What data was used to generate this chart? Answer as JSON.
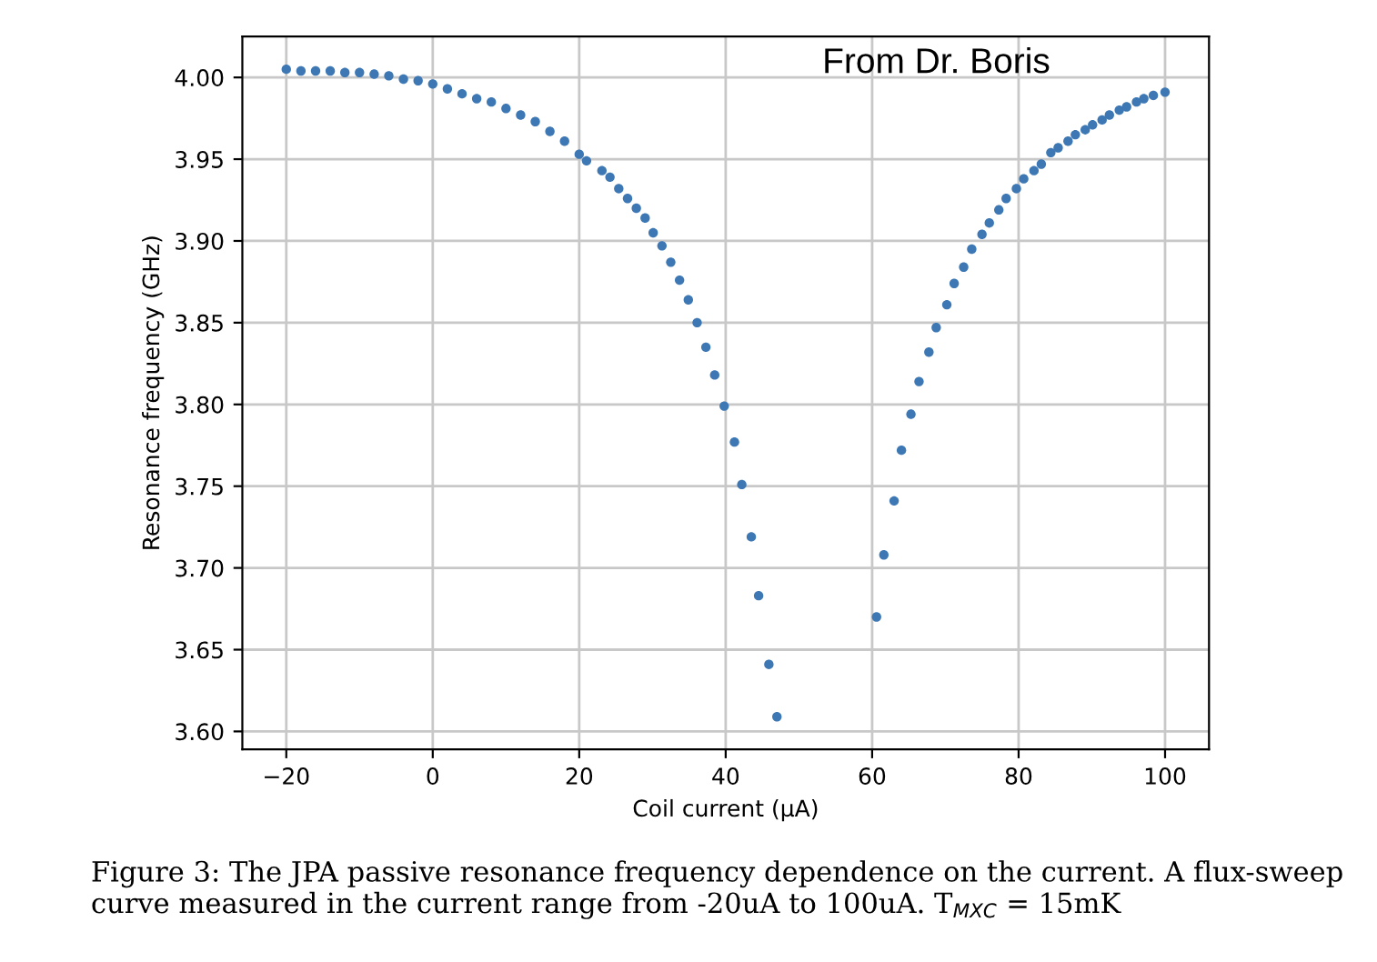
{
  "chart_data": {
    "type": "scatter",
    "xlabel": "Coil current (μA)",
    "ylabel": "Resonance frequency (GHz)",
    "annotations": [
      "From Dr. Boris",
      "Figure 3: The JPA passive resonance frequency dependence on the current. A flux-sweep curve measured in the current range from -20uA to 100uA. T$_{MXC}$ = 15mK"
    ],
    "series": [
      {
        "color": "#3d78b4",
        "x": [
          -20,
          -18,
          -16,
          -14,
          -12,
          -10,
          -8,
          -6,
          -4,
          -2,
          0,
          2,
          4,
          6,
          8,
          10,
          12,
          14,
          16,
          18,
          20,
          21,
          23.1,
          24.2,
          25.4,
          26.6,
          27.8,
          29,
          30.1,
          31.3,
          32.5,
          33.7,
          34.9,
          36.1,
          37.3,
          38.5,
          39.8,
          41.2,
          42.2,
          43.5,
          44.5,
          45.9,
          47,
          60.6,
          61.6,
          63,
          64,
          65.3,
          66.4,
          67.75,
          68.75,
          70.2,
          71.2,
          72.5,
          73.6,
          75,
          76,
          77.3,
          78.3,
          79.7,
          80.7,
          82.1,
          83.1,
          84.4,
          85.4,
          86.75,
          87.75,
          89.1,
          90.1,
          91.4,
          92.4,
          93.75,
          94.75,
          96.1,
          97.1,
          98.4,
          100
        ],
        "values": [
          4.005,
          4.004,
          4.004,
          4.004,
          4.003,
          4.003,
          4.002,
          4.001,
          3.999,
          3.998,
          3.996,
          3.993,
          3.99,
          3.987,
          3.985,
          3.981,
          3.977,
          3.973,
          3.967,
          3.961,
          3.953,
          3.949,
          3.943,
          3.939,
          3.932,
          3.926,
          3.92,
          3.914,
          3.905,
          3.897,
          3.887,
          3.876,
          3.864,
          3.85,
          3.835,
          3.818,
          3.799,
          3.777,
          3.751,
          3.719,
          3.683,
          3.641,
          3.609,
          3.67,
          3.708,
          3.741,
          3.772,
          3.794,
          3.814,
          3.832,
          3.847,
          3.861,
          3.874,
          3.884,
          3.895,
          3.904,
          3.911,
          3.919,
          3.926,
          3.932,
          3.938,
          3.943,
          3.947,
          3.954,
          3.957,
          3.961,
          3.965,
          3.968,
          3.971,
          3.974,
          3.977,
          3.98,
          3.982,
          3.985,
          3.987,
          3.989,
          3.991
        ]
      }
    ],
    "xlim": [
      -26,
      106
    ],
    "ylim": [
      3.589,
      4.025
    ],
    "xticks": [
      {
        "value": -20,
        "label": "−20"
      },
      0,
      20,
      40,
      60,
      80,
      100
    ],
    "yticks": [
      {
        "value": 3.6,
        "label": "3.60"
      },
      {
        "value": 3.65,
        "label": "3.65"
      },
      {
        "value": 3.7,
        "label": "3.70"
      },
      {
        "value": 3.75,
        "label": "3.75"
      },
      {
        "value": 3.8,
        "label": "3.80"
      },
      {
        "value": 3.85,
        "label": "3.85"
      },
      {
        "value": 3.9,
        "label": "3.90"
      },
      {
        "value": 3.95,
        "label": "3.95"
      },
      {
        "value": 4.0,
        "label": "4.00"
      }
    ],
    "grid": true,
    "marker": "circle"
  }
}
